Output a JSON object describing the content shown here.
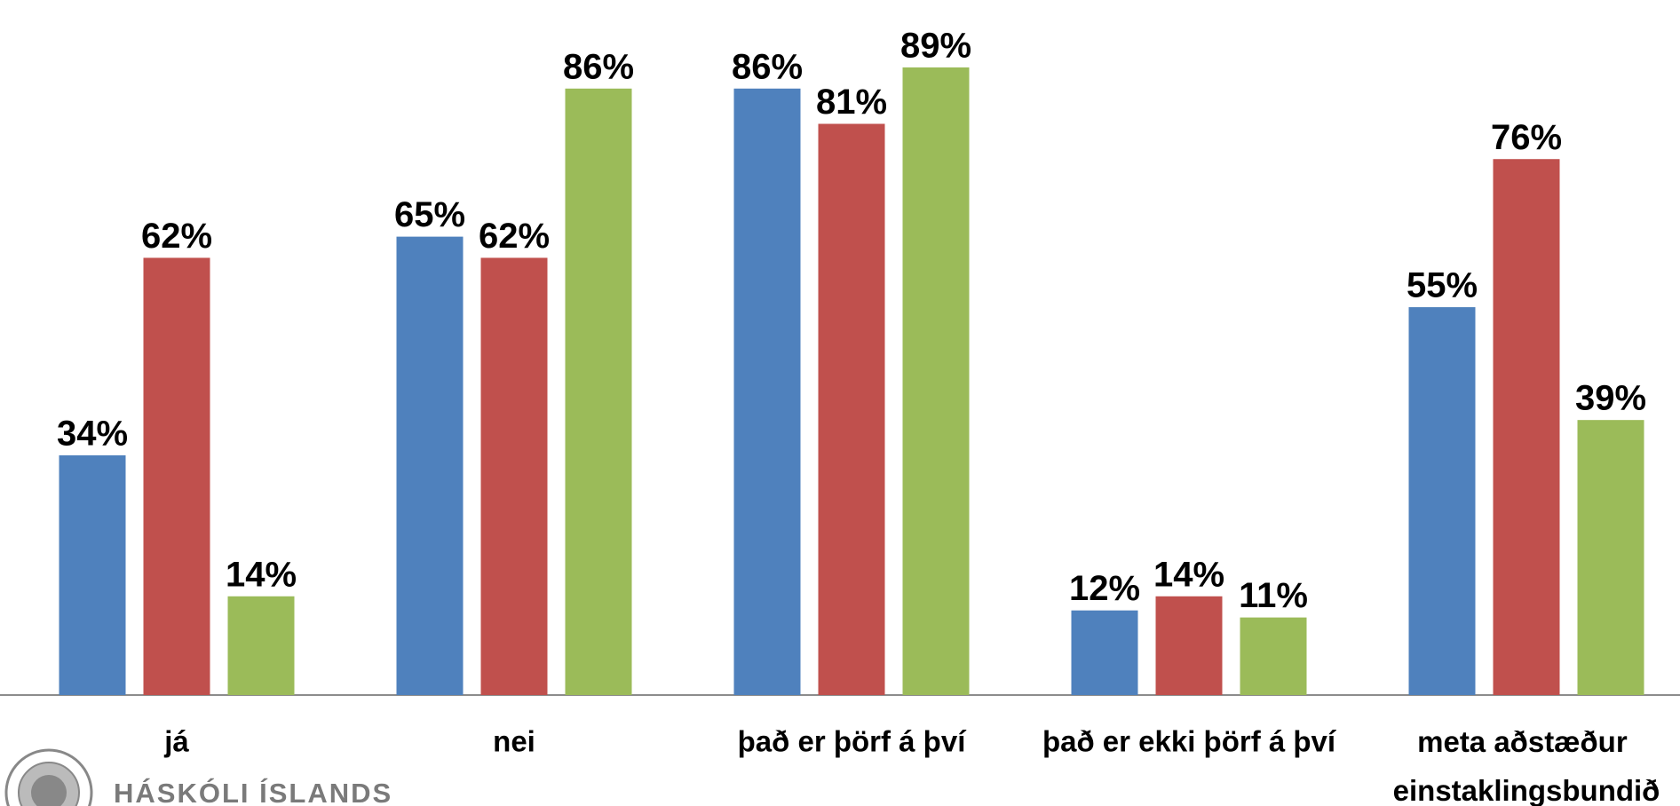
{
  "chart_data": {
    "type": "bar",
    "categories": [
      "já",
      "nei",
      "það er þörf á því",
      "það er ekki þörf á því",
      "meta aðstæður einstaklingsbundið"
    ],
    "series": [
      {
        "color": "#4f81bd",
        "values": [
          34,
          65,
          86,
          12,
          55
        ],
        "value_labels": [
          "34%",
          "65%",
          "86%",
          "12%",
          "55%"
        ]
      },
      {
        "color": "#c0504d",
        "values": [
          62,
          62,
          81,
          14,
          76
        ],
        "value_labels": [
          "62%",
          "62%",
          "81%",
          "14%",
          "76%"
        ]
      },
      {
        "color": "#9bbb59",
        "values": [
          14,
          86,
          89,
          11,
          39
        ],
        "value_labels": [
          "14%",
          "86%",
          "89%",
          "11%",
          "39%"
        ]
      }
    ],
    "ylim": [
      0,
      90
    ]
  },
  "logo": {
    "text": "HÁSKÓLI ÍSLANDS"
  }
}
